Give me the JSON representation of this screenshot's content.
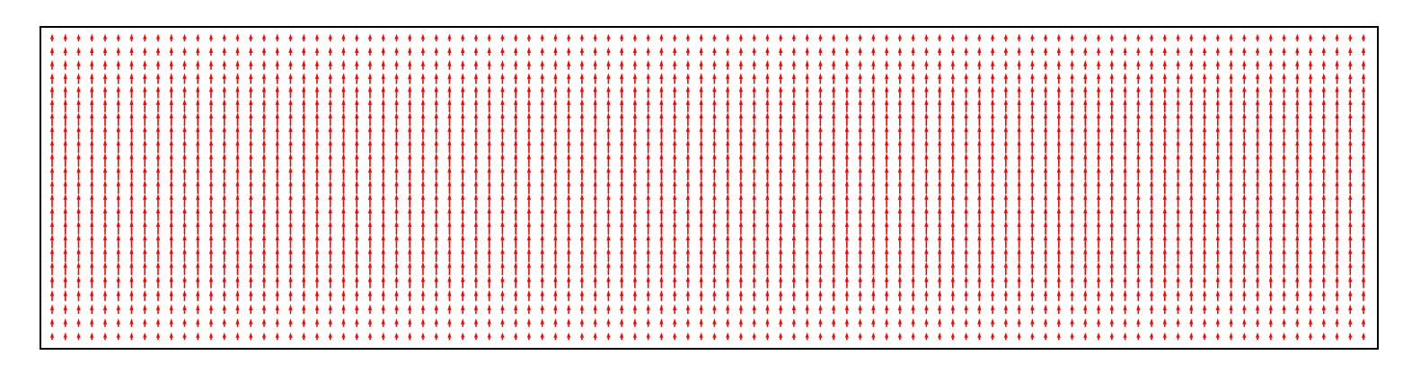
{
  "chart_data": {
    "type": "quiver",
    "title": "",
    "xlabel": "",
    "ylabel": "",
    "grid": false,
    "legend": "none",
    "axis_ticks": false,
    "x": {
      "start": 0,
      "end": 99,
      "count": 100
    },
    "y": {
      "start": 0,
      "end": 22,
      "count": 23
    },
    "vector": {
      "u": 0,
      "v": 1
    },
    "magnitude_profile": {
      "axis": "y",
      "description_values": [
        0.55,
        0.62,
        0.7,
        0.8,
        0.9,
        0.97,
        1.0,
        1.0,
        1.0,
        1.0,
        1.0,
        1.0,
        1.0,
        1.0,
        1.0,
        1.0,
        1.0,
        0.97,
        0.9,
        0.8,
        0.7,
        0.62,
        0.55
      ]
    },
    "colors": {
      "arrow": "#ff0000",
      "frame": "#000000",
      "background": "#ffffff"
    }
  }
}
